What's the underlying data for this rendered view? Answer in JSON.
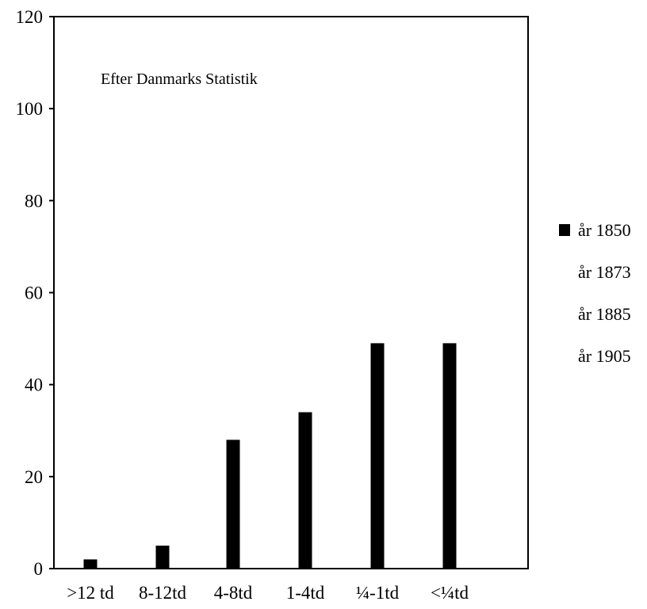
{
  "chart_data": {
    "type": "bar",
    "title": "",
    "xlabel": "",
    "ylabel": "",
    "annotation": "Efter Danmarks Statistik",
    "categories": [
      ">12 td",
      "8-12td",
      "4-8td",
      "1-4td",
      "¼-1td",
      "<¼td"
    ],
    "y_ticks": [
      "0",
      "20",
      "40",
      "60",
      "80",
      "100",
      "120"
    ],
    "ylim": [
      0,
      120
    ],
    "grid": false,
    "legend_position": "right",
    "series": [
      {
        "name": "år 1850",
        "color": "#000000",
        "values": [
          2,
          5,
          28,
          34,
          49,
          49
        ]
      },
      {
        "name": "år 1873",
        "color": "#ffffff",
        "values": [
          null,
          null,
          null,
          null,
          null,
          null
        ]
      },
      {
        "name": "år 1885",
        "color": "#ffffff",
        "values": [
          null,
          null,
          null,
          null,
          null,
          null
        ]
      },
      {
        "name": "år 1905",
        "color": "#ffffff",
        "values": [
          null,
          null,
          null,
          null,
          null,
          null
        ]
      }
    ]
  }
}
